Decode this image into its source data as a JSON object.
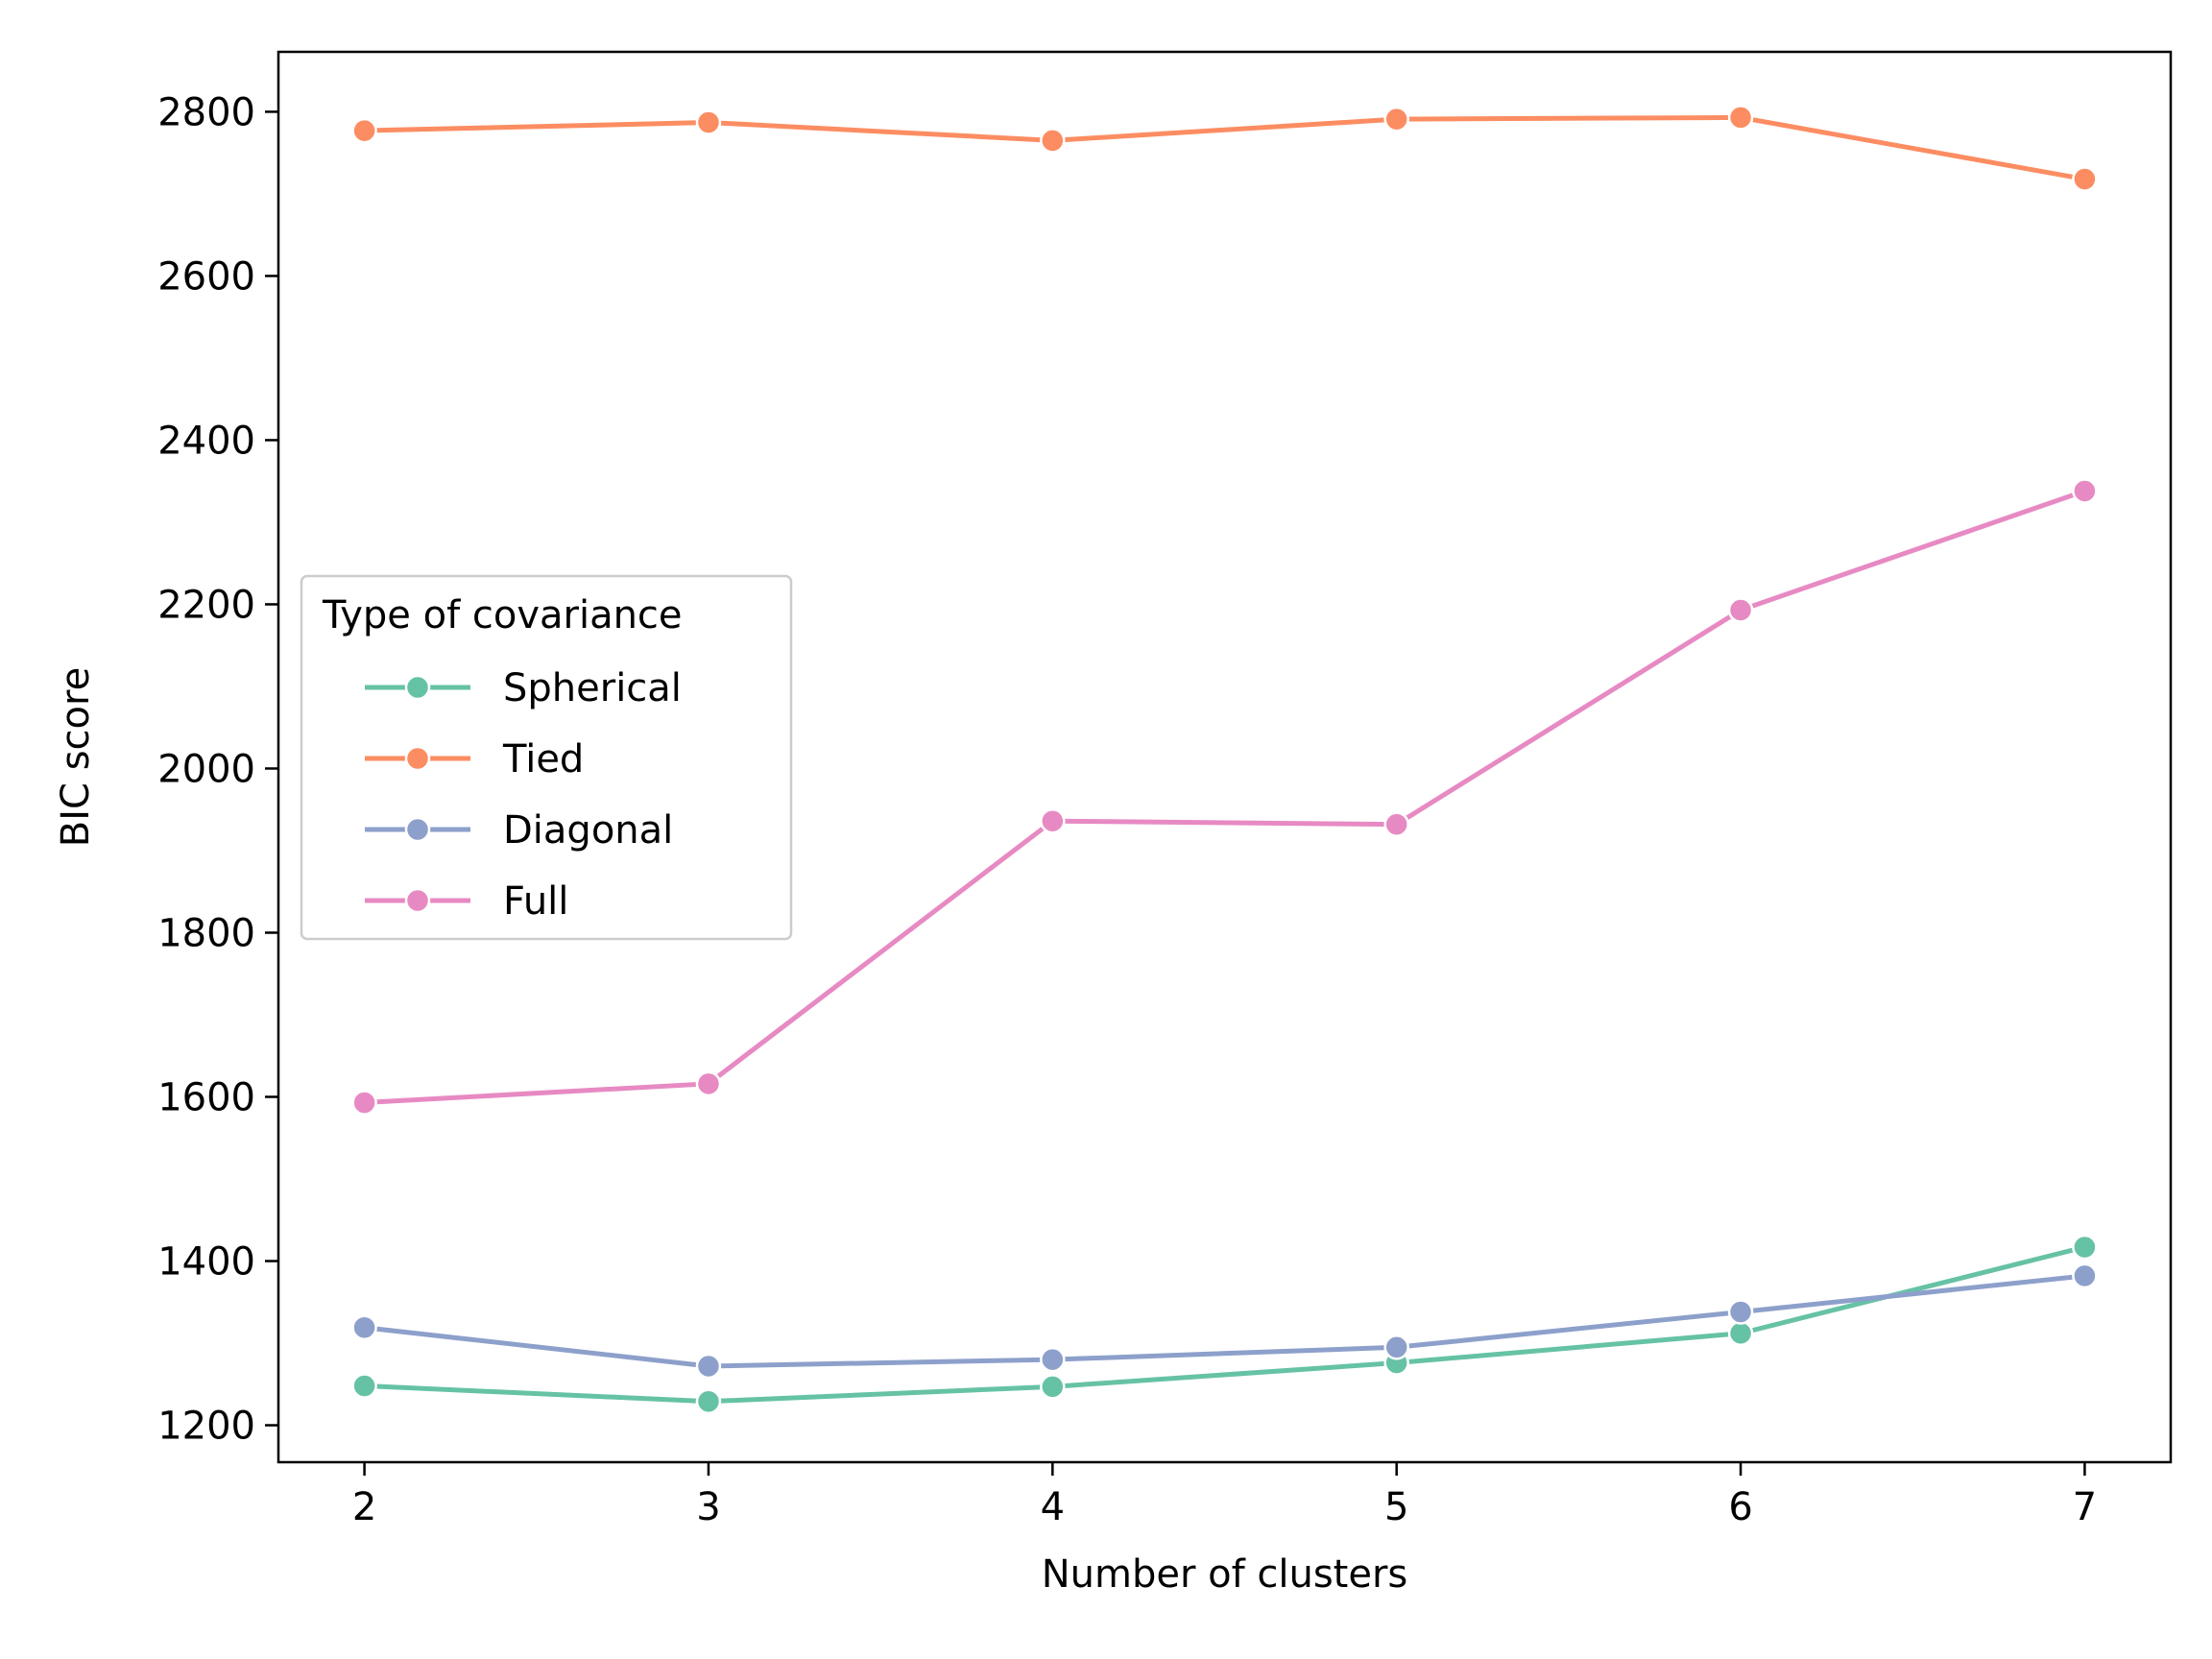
{
  "chart_data": {
    "type": "line",
    "title": "",
    "xlabel": "Number of clusters",
    "ylabel": "BIC score",
    "x": [
      2,
      3,
      4,
      5,
      6,
      7
    ],
    "xlim": [
      1.75,
      7.25
    ],
    "ylim": [
      1155,
      2873
    ],
    "xticks": [
      "2",
      "3",
      "4",
      "5",
      "6",
      "7"
    ],
    "yticks": [
      "1200",
      "1400",
      "1600",
      "1800",
      "2000",
      "2200",
      "2400",
      "2600",
      "2800"
    ],
    "grid": false,
    "legend": {
      "title": "Type of covariance",
      "placement": "center-left"
    },
    "series": [
      {
        "name": "Spherical",
        "color": "#66c2a5",
        "values": [
          1248,
          1229,
          1247,
          1276,
          1312,
          1417
        ]
      },
      {
        "name": "Tied",
        "color": "#fc8d62",
        "values": [
          2777,
          2787,
          2765,
          2791,
          2793,
          2718
        ]
      },
      {
        "name": "Diagonal",
        "color": "#8da0cb",
        "values": [
          1319,
          1272,
          1280,
          1295,
          1338,
          1382
        ]
      },
      {
        "name": "Full",
        "color": "#e78ac3",
        "values": [
          1593,
          1616,
          1936,
          1932,
          2193,
          2338
        ]
      }
    ]
  }
}
